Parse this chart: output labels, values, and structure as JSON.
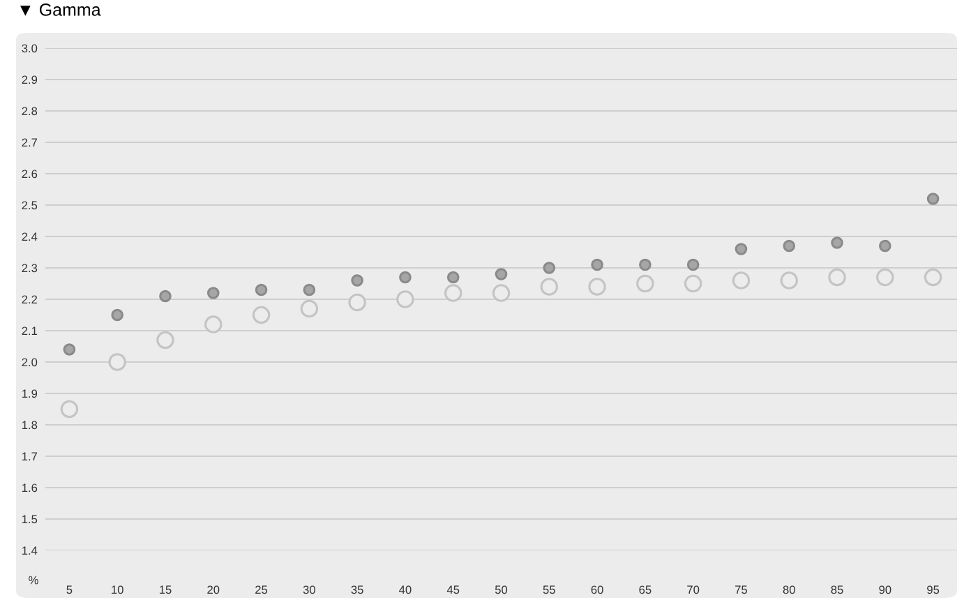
{
  "chart_data": {
    "type": "scatter",
    "title": "▼ Gamma",
    "xlabel": "%",
    "categories": [
      "5",
      "10",
      "15",
      "20",
      "25",
      "30",
      "35",
      "40",
      "45",
      "50",
      "55",
      "60",
      "65",
      "70",
      "75",
      "80",
      "85",
      "90",
      "95"
    ],
    "series": [
      {
        "color": "#a6a6a6",
        "values": [
          2.04,
          2.15,
          2.21,
          2.22,
          2.23,
          2.23,
          2.26,
          2.27,
          2.27,
          2.28,
          2.3,
          2.31,
          2.31,
          2.31,
          2.36,
          2.37,
          2.38,
          2.37,
          2.52
        ]
      },
      {
        "color": "#c4c4c4",
        "values": [
          1.85,
          2.0,
          2.07,
          2.12,
          2.15,
          2.17,
          2.19,
          2.2,
          2.22,
          2.22,
          2.24,
          2.24,
          2.25,
          2.25,
          2.26,
          2.26,
          2.27,
          2.27,
          2.27
        ]
      }
    ],
    "ylim": [
      1.4,
      3.0
    ],
    "yticks": [
      {
        "value": 1.4,
        "label": "1.4"
      },
      {
        "value": 1.5,
        "label": "1.5"
      },
      {
        "value": 1.6,
        "label": "1.6"
      },
      {
        "value": 1.7,
        "label": "1.7"
      },
      {
        "value": 1.8,
        "label": "1.8"
      },
      {
        "value": 1.9,
        "label": "1.9"
      },
      {
        "value": 2.0,
        "label": "2.0"
      },
      {
        "value": 2.1,
        "label": "2.1"
      },
      {
        "value": 2.2,
        "label": "2.2"
      },
      {
        "value": 2.3,
        "label": "2.3"
      },
      {
        "value": 2.4,
        "label": "2.4"
      },
      {
        "value": 2.5,
        "label": "2.5"
      },
      {
        "value": 2.6,
        "label": "2.6"
      },
      {
        "value": 2.7,
        "label": "2.7"
      },
      {
        "value": 2.8,
        "label": "2.8"
      },
      {
        "value": 2.9,
        "label": "2.9"
      },
      {
        "value": 3.0,
        "label": "3.0"
      }
    ],
    "grid": "y",
    "marker": "circle",
    "legend": false
  }
}
